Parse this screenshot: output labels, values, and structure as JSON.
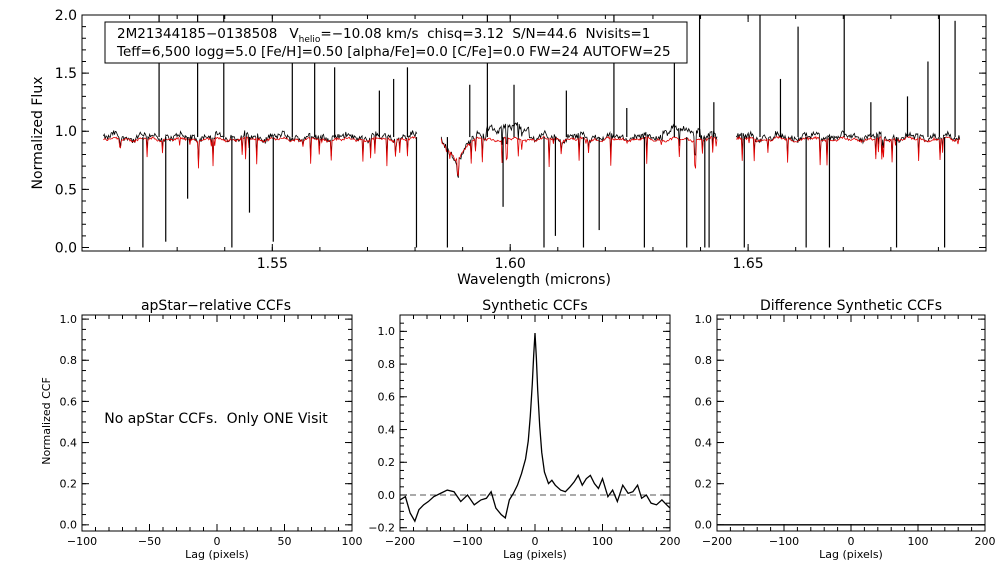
{
  "chart_data": [
    {
      "id": "spectrum",
      "type": "line",
      "title": "",
      "info_line1": {
        "star": "2M21344185−0138508",
        "v_label": "V",
        "v_sub": "helio",
        "v_rest": "=−10.08 km/s  chisq=3.12  S/N=44.6  Nvisits=1"
      },
      "info_line2": "Teff=6,500 logg=5.0 [Fe/H]=0.50 [alpha/Fe]=0.0 [C/Fe]=0.0 FW=24 AUTOFW=25",
      "xlabel": "Wavelength (microns)",
      "ylabel": "Normalized Flux",
      "xlim": [
        1.51,
        1.7
      ],
      "ylim": [
        -0.03,
        2.0
      ],
      "xticks": [
        {
          "v": 1.55,
          "label": "1.55"
        },
        {
          "v": 1.6,
          "label": "1.60"
        },
        {
          "v": 1.65,
          "label": "1.65"
        }
      ],
      "yticks": [
        {
          "v": 0.0,
          "label": "0.0"
        },
        {
          "v": 0.5,
          "label": "0.5"
        },
        {
          "v": 1.0,
          "label": "1.0"
        },
        {
          "v": 1.5,
          "label": "1.5"
        },
        {
          "v": 2.0,
          "label": "2.0"
        }
      ],
      "chips": [
        [
          1.5145,
          1.5805
        ],
        [
          1.5855,
          1.6435
        ],
        [
          1.6475,
          1.6945
        ]
      ],
      "series": [
        {
          "role": "observed",
          "color": "#000000",
          "level": 0.95,
          "noise": 0.025
        },
        {
          "role": "model",
          "color": "#e00000",
          "level": 0.93,
          "noise": 0.01
        }
      ],
      "features": [
        {
          "x": 1.5228,
          "y": 0.0
        },
        {
          "x": 1.5262,
          "y": 2.0
        },
        {
          "x": 1.5276,
          "y": 0.05
        },
        {
          "x": 1.5322,
          "y": 0.42
        },
        {
          "x": 1.5343,
          "y": 2.0
        },
        {
          "x": 1.5398,
          "y": 2.0
        },
        {
          "x": 1.5415,
          "y": 0.0
        },
        {
          "x": 1.5452,
          "y": 0.3
        },
        {
          "x": 1.5502,
          "y": 0.05
        },
        {
          "x": 1.5542,
          "y": 1.6
        },
        {
          "x": 1.5589,
          "y": 1.75
        },
        {
          "x": 1.5631,
          "y": 1.55
        },
        {
          "x": 1.5725,
          "y": 1.35
        },
        {
          "x": 1.5755,
          "y": 1.45
        },
        {
          "x": 1.5784,
          "y": 1.55
        },
        {
          "x": 1.5803,
          "y": 0.0
        },
        {
          "x": 1.5868,
          "y": 0.0
        },
        {
          "x": 1.5915,
          "y": 1.4
        },
        {
          "x": 1.5952,
          "y": 2.0
        },
        {
          "x": 1.5985,
          "y": 0.35
        },
        {
          "x": 1.6008,
          "y": 1.4
        },
        {
          "x": 1.6071,
          "y": 0.0
        },
        {
          "x": 1.6095,
          "y": 0.1
        },
        {
          "x": 1.6118,
          "y": 1.35
        },
        {
          "x": 1.6154,
          "y": 0.0
        },
        {
          "x": 1.6187,
          "y": 0.15
        },
        {
          "x": 1.6218,
          "y": 2.0
        },
        {
          "x": 1.6245,
          "y": 1.2
        },
        {
          "x": 1.6282,
          "y": 0.0
        },
        {
          "x": 1.6345,
          "y": 1.6
        },
        {
          "x": 1.6371,
          "y": 0.0
        },
        {
          "x": 1.6398,
          "y": 2.0
        },
        {
          "x": 1.6409,
          "y": 0.0
        },
        {
          "x": 1.6418,
          "y": 0.0
        },
        {
          "x": 1.6428,
          "y": 1.25
        },
        {
          "x": 1.6492,
          "y": 0.0
        },
        {
          "x": 1.6525,
          "y": 2.0
        },
        {
          "x": 1.6568,
          "y": 1.45
        },
        {
          "x": 1.6605,
          "y": 1.9
        },
        {
          "x": 1.6622,
          "y": 0.0
        },
        {
          "x": 1.6671,
          "y": 0.0
        },
        {
          "x": 1.6702,
          "y": 2.0
        },
        {
          "x": 1.6758,
          "y": 1.25
        },
        {
          "x": 1.6812,
          "y": 0.0
        },
        {
          "x": 1.6835,
          "y": 1.3
        },
        {
          "x": 1.6878,
          "y": 1.6
        },
        {
          "x": 1.6902,
          "y": 2.0
        },
        {
          "x": 1.6913,
          "y": 0.0
        },
        {
          "x": 1.6935,
          "y": 1.95
        }
      ]
    },
    {
      "id": "apstar",
      "type": "line",
      "title": "apStar−relative CCFs",
      "xlabel": "Lag (pixels)",
      "ylabel": "Normalized CCF",
      "xlim": [
        -100,
        100
      ],
      "ylim": [
        -0.03,
        1.02
      ],
      "xticks": [
        {
          "v": -100,
          "label": "−100"
        },
        {
          "v": -50,
          "label": "−50"
        },
        {
          "v": 0,
          "label": "0"
        },
        {
          "v": 50,
          "label": "50"
        },
        {
          "v": 100,
          "label": "100"
        }
      ],
      "yticks": [
        {
          "v": 0.0,
          "label": "0.0"
        },
        {
          "v": 0.2,
          "label": "0.2"
        },
        {
          "v": 0.4,
          "label": "0.4"
        },
        {
          "v": 0.6,
          "label": "0.6"
        },
        {
          "v": 0.8,
          "label": "0.8"
        },
        {
          "v": 1.0,
          "label": "1.0"
        }
      ],
      "message": "No apStar CCFs.  Only ONE Visit",
      "series": []
    },
    {
      "id": "synthetic",
      "type": "line",
      "title": "Synthetic CCFs",
      "xlabel": "Lag (pixels)",
      "ylabel": "",
      "xlim": [
        -200,
        200
      ],
      "ylim": [
        -0.22,
        1.1
      ],
      "xticks": [
        {
          "v": -200,
          "label": "−200"
        },
        {
          "v": -100,
          "label": "−100"
        },
        {
          "v": 0,
          "label": "0"
        },
        {
          "v": 100,
          "label": "100"
        },
        {
          "v": 200,
          "label": "200"
        }
      ],
      "yticks": [
        {
          "v": -0.2,
          "label": "−0.2"
        },
        {
          "v": 0.0,
          "label": "0.0"
        },
        {
          "v": 0.2,
          "label": "0.2"
        },
        {
          "v": 0.4,
          "label": "0.4"
        },
        {
          "v": 0.6,
          "label": "0.6"
        },
        {
          "v": 0.8,
          "label": "0.8"
        },
        {
          "v": 1.0,
          "label": "1.0"
        }
      ],
      "reference_line": 0.0,
      "series": [
        {
          "color": "#000000",
          "x": [
            -200,
            -192,
            -185,
            -178,
            -172,
            -165,
            -158,
            -150,
            -140,
            -130,
            -120,
            -110,
            -100,
            -90,
            -80,
            -72,
            -65,
            -58,
            -50,
            -44,
            -38,
            -32,
            -26,
            -20,
            -14,
            -10,
            -7,
            -4,
            -2,
            0,
            2,
            4,
            7,
            10,
            14,
            20,
            25,
            30,
            38,
            45,
            52,
            58,
            64,
            70,
            76,
            82,
            88,
            94,
            100,
            108,
            115,
            122,
            130,
            138,
            145,
            152,
            158,
            165,
            172,
            180,
            188,
            195,
            200
          ],
          "y": [
            -0.03,
            -0.01,
            -0.11,
            -0.16,
            -0.09,
            -0.06,
            -0.04,
            -0.01,
            0.01,
            0.03,
            0.02,
            -0.04,
            0.0,
            -0.06,
            -0.03,
            -0.02,
            0.02,
            -0.08,
            -0.12,
            -0.14,
            -0.03,
            0.01,
            0.06,
            0.13,
            0.22,
            0.33,
            0.48,
            0.68,
            0.85,
            0.99,
            0.84,
            0.64,
            0.42,
            0.26,
            0.14,
            0.07,
            0.09,
            0.06,
            0.03,
            0.02,
            0.05,
            0.08,
            0.12,
            0.06,
            0.1,
            0.12,
            0.07,
            0.04,
            0.1,
            -0.01,
            0.03,
            -0.04,
            0.06,
            0.01,
            0.02,
            0.06,
            -0.02,
            0.0,
            -0.05,
            -0.06,
            -0.03,
            -0.06,
            -0.08
          ]
        }
      ]
    },
    {
      "id": "difference",
      "type": "line",
      "title": "Difference Synthetic CCFs",
      "xlabel": "Lag (pixels)",
      "ylabel": "",
      "xlim": [
        -200,
        200
      ],
      "ylim": [
        -0.03,
        1.02
      ],
      "xticks": [
        {
          "v": -200,
          "label": "−200"
        },
        {
          "v": -100,
          "label": "−100"
        },
        {
          "v": 0,
          "label": "0"
        },
        {
          "v": 100,
          "label": "100"
        },
        {
          "v": 200,
          "label": "200"
        }
      ],
      "yticks": [
        {
          "v": 0.0,
          "label": "0.0"
        },
        {
          "v": 0.2,
          "label": "0.2"
        },
        {
          "v": 0.4,
          "label": "0.4"
        },
        {
          "v": 0.6,
          "label": "0.6"
        },
        {
          "v": 0.8,
          "label": "0.8"
        },
        {
          "v": 1.0,
          "label": "1.0"
        }
      ],
      "series": [
        {
          "color": "#000000",
          "x": [
            -200,
            200
          ],
          "y": [
            0.0,
            0.0
          ]
        }
      ]
    }
  ]
}
